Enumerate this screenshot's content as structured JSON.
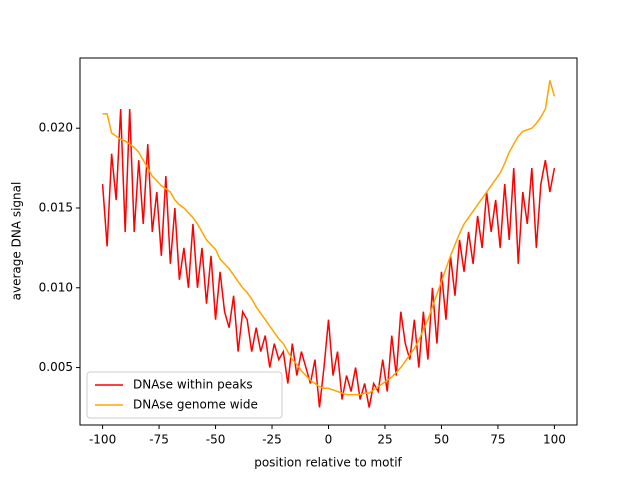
{
  "chart_data": {
    "type": "line",
    "xlabel": "position relative to motif",
    "ylabel": "average DNA signal",
    "x": [
      -100,
      -98,
      -96,
      -94,
      -92,
      -90,
      -88,
      -86,
      -84,
      -82,
      -80,
      -78,
      -76,
      -74,
      -72,
      -70,
      -68,
      -66,
      -64,
      -62,
      -60,
      -58,
      -56,
      -54,
      -52,
      -50,
      -48,
      -46,
      -44,
      -42,
      -40,
      -38,
      -36,
      -34,
      -32,
      -30,
      -28,
      -26,
      -24,
      -22,
      -20,
      -18,
      -16,
      -14,
      -12,
      -10,
      -8,
      -6,
      -4,
      -2,
      0,
      2,
      4,
      6,
      8,
      10,
      12,
      14,
      16,
      18,
      20,
      22,
      24,
      26,
      28,
      30,
      32,
      34,
      36,
      38,
      40,
      42,
      44,
      46,
      48,
      50,
      52,
      54,
      56,
      58,
      60,
      62,
      64,
      66,
      68,
      70,
      72,
      74,
      76,
      78,
      80,
      82,
      84,
      86,
      88,
      90,
      92,
      94,
      96,
      98,
      100
    ],
    "series": [
      {
        "name": "DNAse within peaks",
        "color": "#ff0000",
        "values": [
          0.0165,
          0.0126,
          0.0184,
          0.0155,
          0.0212,
          0.0135,
          0.0212,
          0.0135,
          0.018,
          0.014,
          0.019,
          0.0135,
          0.016,
          0.012,
          0.017,
          0.0115,
          0.015,
          0.0105,
          0.0125,
          0.01,
          0.014,
          0.01,
          0.0125,
          0.009,
          0.012,
          0.008,
          0.011,
          0.0085,
          0.0075,
          0.0095,
          0.006,
          0.0085,
          0.008,
          0.006,
          0.0075,
          0.006,
          0.007,
          0.005,
          0.0065,
          0.0055,
          0.006,
          0.004,
          0.0065,
          0.0045,
          0.006,
          0.005,
          0.004,
          0.0055,
          0.0025,
          0.005,
          0.008,
          0.0045,
          0.006,
          0.003,
          0.0045,
          0.0035,
          0.005,
          0.003,
          0.004,
          0.0025,
          0.004,
          0.0035,
          0.0055,
          0.0035,
          0.007,
          0.0045,
          0.0085,
          0.0065,
          0.0055,
          0.008,
          0.005,
          0.0085,
          0.0055,
          0.01,
          0.0065,
          0.011,
          0.008,
          0.012,
          0.0095,
          0.013,
          0.011,
          0.0135,
          0.0115,
          0.0145,
          0.0125,
          0.016,
          0.0135,
          0.0155,
          0.0125,
          0.0165,
          0.013,
          0.0175,
          0.0115,
          0.016,
          0.014,
          0.0175,
          0.0125,
          0.0165,
          0.018,
          0.016,
          0.0175
        ]
      },
      {
        "name": "DNAse genome wide",
        "color": "#ffa500",
        "values": [
          0.0209,
          0.0209,
          0.0197,
          0.0195,
          0.0193,
          0.0192,
          0.019,
          0.0188,
          0.0185,
          0.018,
          0.0175,
          0.017,
          0.0167,
          0.0164,
          0.0162,
          0.016,
          0.0155,
          0.0152,
          0.015,
          0.0147,
          0.0144,
          0.014,
          0.0135,
          0.013,
          0.0127,
          0.0124,
          0.0118,
          0.0115,
          0.0112,
          0.0108,
          0.0104,
          0.01,
          0.0097,
          0.0093,
          0.0088,
          0.0084,
          0.008,
          0.0076,
          0.0072,
          0.0068,
          0.0065,
          0.006,
          0.0055,
          0.0052,
          0.0048,
          0.0045,
          0.0042,
          0.004,
          0.0038,
          0.0037,
          0.0037,
          0.0036,
          0.0035,
          0.0034,
          0.0033,
          0.0033,
          0.0033,
          0.0033,
          0.0034,
          0.0034,
          0.0036,
          0.0038,
          0.004,
          0.0042,
          0.0044,
          0.0047,
          0.005,
          0.0054,
          0.0058,
          0.0062,
          0.0067,
          0.0074,
          0.008,
          0.0088,
          0.0096,
          0.0104,
          0.0112,
          0.012,
          0.0127,
          0.0134,
          0.014,
          0.0144,
          0.0148,
          0.0152,
          0.0156,
          0.016,
          0.0164,
          0.0168,
          0.0172,
          0.0178,
          0.0185,
          0.019,
          0.0195,
          0.0198,
          0.0199,
          0.02,
          0.0203,
          0.0207,
          0.0212,
          0.023,
          0.022
        ]
      }
    ],
    "xlim": [
      -110,
      110
    ],
    "ylim": [
      0.0014,
      0.0244
    ],
    "xticks": [
      -100,
      -75,
      -50,
      -25,
      0,
      25,
      50,
      75,
      100
    ],
    "yticks": [
      0.005,
      {
        "value": 0.01,
        "label": "0.010"
      },
      {
        "value": 0.015,
        "label": "0.015"
      },
      {
        "value": 0.02,
        "label": "0.020"
      }
    ],
    "legend": "lower left",
    "grid": false
  }
}
